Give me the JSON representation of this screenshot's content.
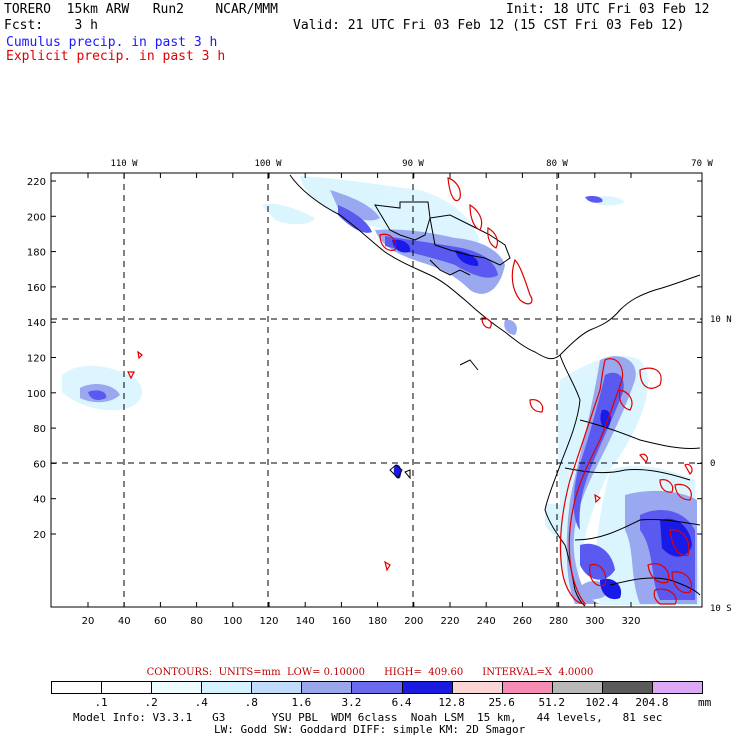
{
  "header": {
    "model": "TORERO  15km ARW   Run2    NCAR/MMM",
    "init": "Init: 18 UTC Fri 03 Feb 12",
    "fcst": "Fcst:    3 h",
    "valid": "Valid: 21 UTC Fri 03 Feb 12 (15 CST Fri 03 Feb 12)",
    "field1": "Cumulus precip. in past 3 h",
    "field2": "Explicit precip. in past 3 h"
  },
  "map": {
    "lon_labels": [
      "110 W",
      "100 W",
      "90 W",
      "80 W",
      "70 W"
    ],
    "lat_labels": [
      "10 N",
      "0",
      "10 S"
    ],
    "y_ticks": [
      "220",
      "200",
      "180",
      "160",
      "140",
      "120",
      "100",
      "80",
      "60",
      "40",
      "20"
    ],
    "x_ticks": [
      "20",
      "40",
      "60",
      "80",
      "100",
      "120",
      "140",
      "160",
      "180",
      "200",
      "220",
      "240",
      "260",
      "280",
      "300",
      "320"
    ],
    "colors": {
      "light": "#d8f4ff",
      "mid": "#9aa8f0",
      "strong": "#5a5af0",
      "deep": "#1a1ae8",
      "contour": "#e00000"
    }
  },
  "legend": {
    "contours_text": "CONTOURS:  UNITS=mm  LOW= 0.10000      HIGH=  409.60      INTERVAL=X  4.0000",
    "unit": "mm",
    "labels": [
      ".1",
      ".2",
      ".4",
      ".8",
      "1.6",
      "3.2",
      "6.4",
      "12.8",
      "25.6",
      "51.2",
      "102.4",
      "204.8"
    ],
    "colors": [
      "#ffffff",
      "#ffffff",
      "#eefcff",
      "#d6f2ff",
      "#c0dcfa",
      "#9aa6ec",
      "#6a6aee",
      "#1a1ae0",
      "#fcd6d6",
      "#f48cb4",
      "#b8b8b8",
      "#5a5a5a",
      "#dca8f8"
    ]
  },
  "footer": {
    "line1": "Model Info: V3.3.1   G3       YSU PBL  WDM 6class  Noah LSM  15 km,   44 levels,   81 sec",
    "line2": "LW: Godd SW: Goddard DIFF: simple KM: 2D Smagor"
  }
}
